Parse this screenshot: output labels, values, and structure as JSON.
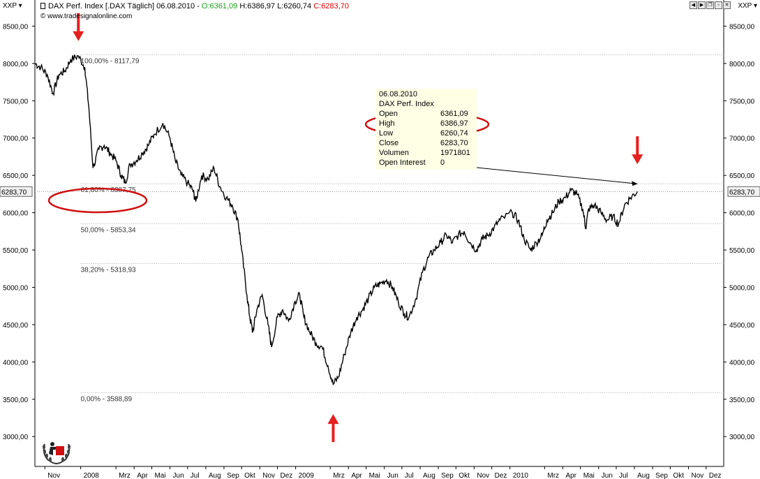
{
  "header": {
    "symbol_left": "XXP",
    "symbol_right": "XXP",
    "title": "DAX Perf. Index [.DAX  Täglich] 06.08.2010 - ",
    "open": "O:6361,09",
    "high": "H:6386,97",
    "low": "L:6260,74",
    "close": "C:6283,70",
    "copyright": "© www.tradesignalonline.com",
    "window_buttons": [
      "◀",
      "▶",
      "❐",
      "▫",
      "✕"
    ]
  },
  "colors": {
    "open": "#1e9e1e",
    "close": "#e00000",
    "arrow": "#e52020",
    "highlight": "#d01010",
    "tooltip_bg": "#ffffe6",
    "fib_line": "#a0a0a0"
  },
  "tooltip": {
    "date": "06.08.2010",
    "name": "DAX Perf. Index",
    "rows": [
      {
        "key": "Open",
        "value": "6361,09"
      },
      {
        "key": "High",
        "value": "6386,97"
      },
      {
        "key": "Low",
        "value": "6260,74"
      },
      {
        "key": "Close",
        "value": "6283,70"
      },
      {
        "key": "Volumen",
        "value": "1971801"
      },
      {
        "key": "Open Interest",
        "value": "0"
      }
    ]
  },
  "chart_data": {
    "type": "line",
    "title": "DAX Perf. Index [.DAX  Täglich]",
    "ylim": [
      2600,
      8850
    ],
    "y_ticks": [
      {
        "value": 3000,
        "label": "3000,00"
      },
      {
        "value": 3500,
        "label": "3500,00"
      },
      {
        "value": 4000,
        "label": "4000,00"
      },
      {
        "value": 4500,
        "label": "4500,00"
      },
      {
        "value": 5000,
        "label": "5000,00"
      },
      {
        "value": 5500,
        "label": "5500,00"
      },
      {
        "value": 6000,
        "label": "6000,00"
      },
      {
        "value": 6500,
        "label": "6500,00"
      },
      {
        "value": 7000,
        "label": "7000,00"
      },
      {
        "value": 7500,
        "label": "7500,00"
      },
      {
        "value": 8000,
        "label": "8000,00"
      },
      {
        "value": 8500,
        "label": "8500,00"
      }
    ],
    "x_ticks": [
      {
        "label": "Nov",
        "date": "2007-11"
      },
      {
        "label": "2008",
        "date": "2008-01"
      },
      {
        "label": "Mrz",
        "date": "2008-03"
      },
      {
        "label": "Apr",
        "date": "2008-04"
      },
      {
        "label": "Mai",
        "date": "2008-05"
      },
      {
        "label": "Jun",
        "date": "2008-06"
      },
      {
        "label": "Jul",
        "date": "2008-07"
      },
      {
        "label": "Aug",
        "date": "2008-08"
      },
      {
        "label": "Sep",
        "date": "2008-09"
      },
      {
        "label": "Okt",
        "date": "2008-10"
      },
      {
        "label": "Nov",
        "date": "2008-11"
      },
      {
        "label": "Dez",
        "date": "2008-12"
      },
      {
        "label": "2009",
        "date": "2009-01"
      },
      {
        "label": "Mrz",
        "date": "2009-03"
      },
      {
        "label": "Apr",
        "date": "2009-04"
      },
      {
        "label": "Mai",
        "date": "2009-05"
      },
      {
        "label": "Jun",
        "date": "2009-06"
      },
      {
        "label": "Jul",
        "date": "2009-07"
      },
      {
        "label": "Aug",
        "date": "2009-08"
      },
      {
        "label": "Sep",
        "date": "2009-09"
      },
      {
        "label": "Okt",
        "date": "2009-10"
      },
      {
        "label": "Nov",
        "date": "2009-11"
      },
      {
        "label": "Dez",
        "date": "2009-12"
      },
      {
        "label": "2010",
        "date": "2010-01"
      },
      {
        "label": "Mrz",
        "date": "2010-03"
      },
      {
        "label": "Apr",
        "date": "2010-04"
      },
      {
        "label": "Mai",
        "date": "2010-05"
      },
      {
        "label": "Jun",
        "date": "2010-06"
      },
      {
        "label": "Jul",
        "date": "2010-07"
      },
      {
        "label": "Aug",
        "date": "2010-08"
      },
      {
        "label": "Sep",
        "date": "2010-09"
      },
      {
        "label": "Okt",
        "date": "2010-10"
      },
      {
        "label": "Nov",
        "date": "2010-11"
      },
      {
        "label": "Dez",
        "date": "2010-12"
      }
    ],
    "series": [
      {
        "x": [
          "2007-10-15",
          "2007-10-25",
          "2007-11-05",
          "2007-11-15",
          "2007-11-25",
          "2007-12-05",
          "2007-12-15",
          "2007-12-28",
          "2008-01-08",
          "2008-01-15",
          "2008-01-22",
          "2008-02-01",
          "2008-02-10",
          "2008-02-20",
          "2008-03-01",
          "2008-03-10",
          "2008-03-17",
          "2008-03-25",
          "2008-04-05",
          "2008-04-15",
          "2008-04-25",
          "2008-05-05",
          "2008-05-20",
          "2008-06-01",
          "2008-06-10",
          "2008-06-20",
          "2008-07-01",
          "2008-07-10",
          "2008-07-15",
          "2008-07-25",
          "2008-08-05",
          "2008-08-15",
          "2008-08-25",
          "2008-09-05",
          "2008-09-15",
          "2008-09-25",
          "2008-10-01",
          "2008-10-10",
          "2008-10-15",
          "2008-10-20",
          "2008-10-27",
          "2008-11-05",
          "2008-11-15",
          "2008-11-21",
          "2008-12-01",
          "2008-12-10",
          "2008-12-20",
          "2008-12-31",
          "2009-01-08",
          "2009-01-15",
          "2009-01-25",
          "2009-02-05",
          "2009-02-15",
          "2009-02-25",
          "2009-03-06",
          "2009-03-15",
          "2009-03-25",
          "2009-04-05",
          "2009-04-15",
          "2009-04-25",
          "2009-05-05",
          "2009-05-15",
          "2009-05-25",
          "2009-06-05",
          "2009-06-15",
          "2009-06-25",
          "2009-07-05",
          "2009-07-13",
          "2009-07-25",
          "2009-08-05",
          "2009-08-15",
          "2009-08-25",
          "2009-09-05",
          "2009-09-15",
          "2009-09-25",
          "2009-10-05",
          "2009-10-15",
          "2009-10-25",
          "2009-11-05",
          "2009-11-15",
          "2009-11-25",
          "2009-12-05",
          "2009-12-15",
          "2010-01-05",
          "2010-01-15",
          "2010-01-25",
          "2010-02-05",
          "2010-02-15",
          "2010-02-25",
          "2010-03-05",
          "2010-03-15",
          "2010-03-25",
          "2010-04-05",
          "2010-04-15",
          "2010-04-25",
          "2010-05-05",
          "2010-05-10",
          "2010-05-15",
          "2010-05-25",
          "2010-06-05",
          "2010-06-15",
          "2010-06-25",
          "2010-07-05",
          "2010-07-15",
          "2010-07-25",
          "2010-08-06"
        ],
        "y": [
          8000,
          7950,
          7850,
          7600,
          7850,
          7900,
          8050,
          8100,
          7950,
          7400,
          6600,
          6850,
          6900,
          6800,
          6700,
          6500,
          6400,
          6650,
          6700,
          6800,
          6900,
          7050,
          7200,
          7000,
          6700,
          6500,
          6400,
          6300,
          6150,
          6500,
          6450,
          6600,
          6350,
          6200,
          6100,
          5900,
          5500,
          4900,
          4600,
          4400,
          4700,
          4900,
          4500,
          4200,
          4600,
          4700,
          4550,
          4810,
          4900,
          4600,
          4400,
          4250,
          4200,
          3950,
          3700,
          3800,
          4100,
          4400,
          4600,
          4700,
          4850,
          5000,
          5050,
          5100,
          5000,
          4800,
          4650,
          4600,
          4850,
          5200,
          5400,
          5500,
          5600,
          5700,
          5600,
          5700,
          5750,
          5600,
          5500,
          5650,
          5700,
          5800,
          5900,
          6000,
          5900,
          5650,
          5500,
          5600,
          5700,
          5900,
          6000,
          6150,
          6200,
          6300,
          6250,
          6050,
          5800,
          6050,
          6100,
          6000,
          5900,
          5950,
          5850,
          6100,
          6200,
          6283.7
        ],
        "close": 6283.7
      }
    ],
    "fib_levels": [
      {
        "label": "100,00% - 8117,79",
        "value": 8117.79
      },
      {
        "label": "61,80% - 6387,75",
        "value": 6387.75
      },
      {
        "label": "50,00% - 5853,34",
        "value": 5853.34
      },
      {
        "label": "38,20% - 5318,93",
        "value": 5318.93
      },
      {
        "label": "0,00% - 3588,89",
        "value": 3588.89
      }
    ],
    "last_price_label": "6283,70",
    "x_start": "2007-10-15",
    "x_end": "2010-12-31",
    "fib_start": "2008-01-01",
    "grid": false,
    "legend": "none",
    "arrows": [
      {
        "direction": "down",
        "date": "2007-12-28",
        "value": 8300
      },
      {
        "direction": "up",
        "date": "2009-03-06",
        "value": 3300
      },
      {
        "direction": "down",
        "date": "2010-08-06",
        "value": 6650
      }
    ],
    "highlights": [
      {
        "near": "fib_61"
      },
      {
        "near": "tooltip_high"
      }
    ]
  }
}
